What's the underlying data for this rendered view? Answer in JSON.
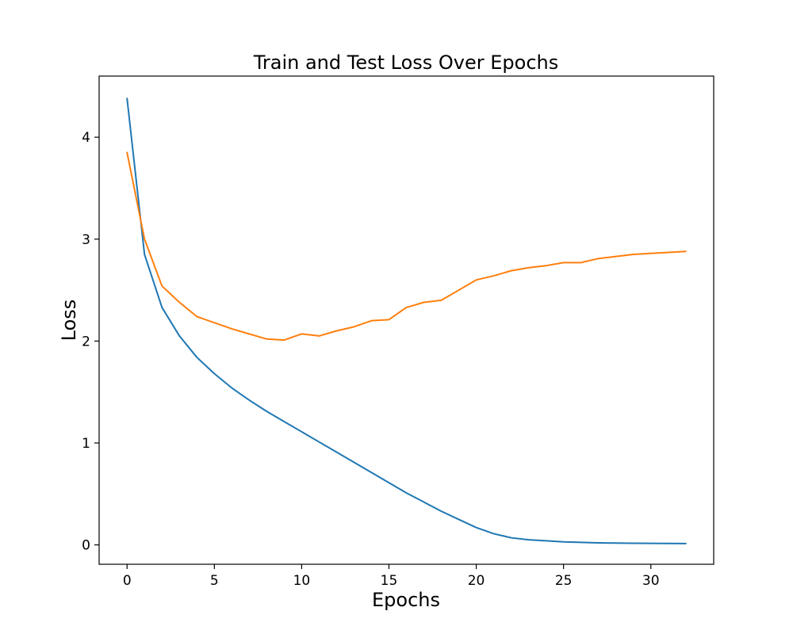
{
  "chart_data": {
    "type": "line",
    "title": "Train and Test Loss Over Epochs",
    "xlabel": "Epochs",
    "ylabel": "Loss",
    "xlim": [
      -1.6,
      33.6
    ],
    "ylim": [
      -0.19,
      4.6
    ],
    "xticks": [
      0,
      5,
      10,
      15,
      20,
      25,
      30
    ],
    "yticks": [
      0,
      1,
      2,
      3,
      4
    ],
    "grid": false,
    "legend": "none",
    "x": [
      0,
      1,
      2,
      3,
      4,
      5,
      6,
      7,
      8,
      9,
      10,
      11,
      12,
      13,
      14,
      15,
      16,
      17,
      18,
      19,
      20,
      21,
      22,
      23,
      24,
      25,
      26,
      27,
      28,
      29,
      30,
      31,
      32
    ],
    "series": [
      {
        "color": "#1f77b4",
        "values": [
          4.38,
          2.85,
          2.33,
          2.05,
          1.84,
          1.68,
          1.54,
          1.42,
          1.31,
          1.21,
          1.11,
          1.01,
          0.91,
          0.81,
          0.71,
          0.61,
          0.51,
          0.42,
          0.33,
          0.25,
          0.17,
          0.11,
          0.07,
          0.05,
          0.04,
          0.03,
          0.025,
          0.02,
          0.018,
          0.016,
          0.015,
          0.014,
          0.013
        ]
      },
      {
        "color": "#ff7f0e",
        "values": [
          3.85,
          3.0,
          2.54,
          2.38,
          2.24,
          2.18,
          2.12,
          2.07,
          2.02,
          2.01,
          2.07,
          2.05,
          2.1,
          2.14,
          2.2,
          2.21,
          2.33,
          2.38,
          2.4,
          2.5,
          2.6,
          2.64,
          2.69,
          2.72,
          2.74,
          2.77,
          2.77,
          2.81,
          2.83,
          2.85,
          2.86,
          2.87,
          2.88
        ]
      }
    ]
  }
}
